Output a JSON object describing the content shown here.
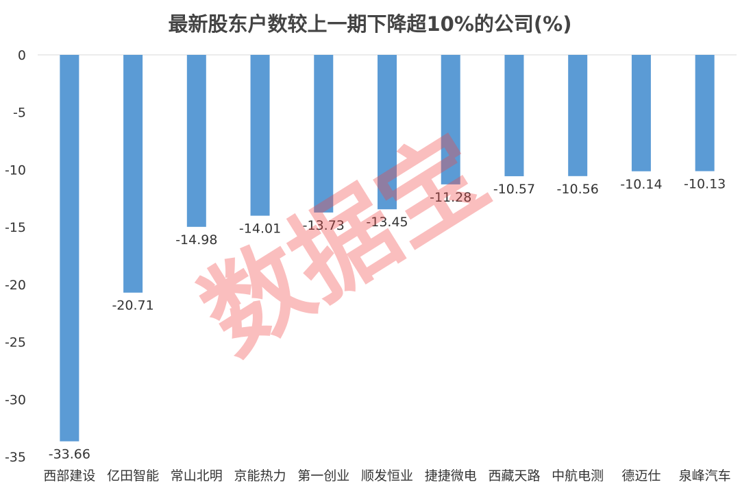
{
  "chart_data": {
    "type": "bar",
    "title": "最新股东户数较上一期下降超10%的公司(%)",
    "categories": [
      "西部建设",
      "亿田智能",
      "常山北明",
      "京能热力",
      "第一创业",
      "顺发恒业",
      "捷捷微电",
      "西藏天路",
      "中航电测",
      "德迈仕",
      "泉峰汽车"
    ],
    "values": [
      -33.66,
      -20.71,
      -14.98,
      -14.01,
      -13.73,
      -13.45,
      -11.28,
      -10.57,
      -10.56,
      -10.14,
      -10.13
    ],
    "data_labels": [
      "-33.66",
      "-20.71",
      "-14.98",
      "-14.01",
      "-13.73",
      "-13.45",
      "-11.28",
      "-10.57",
      "-10.56",
      "-10.14",
      "-10.13"
    ],
    "y_ticks": [
      "0",
      "-5",
      "-10",
      "-15",
      "-20",
      "-25",
      "-30",
      "-35"
    ],
    "ylim": [
      -35,
      0
    ],
    "grid": false,
    "bar_color": "#5B9BD5",
    "watermark": "数据宝",
    "watermark_color": "#F04646"
  }
}
